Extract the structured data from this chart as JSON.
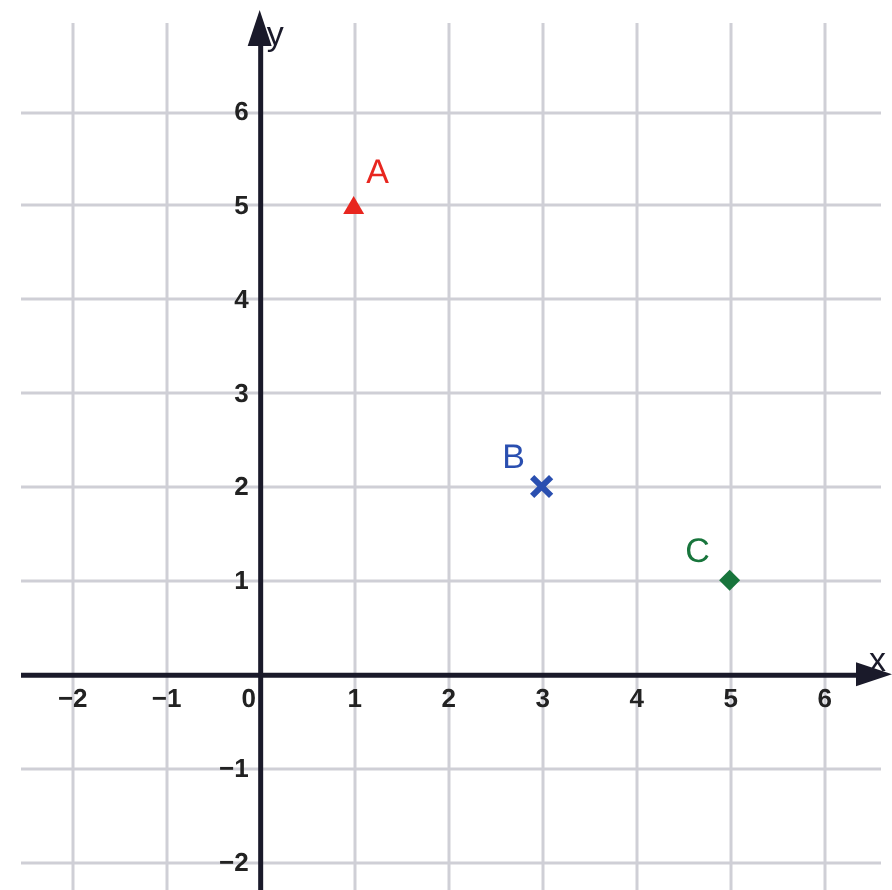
{
  "chart_data": {
    "type": "scatter",
    "xlabel": "x",
    "ylabel": "y",
    "xlim": [
      -2.55,
      6.6
    ],
    "ylim": [
      -2.3,
      6.95
    ],
    "xticks": [
      {
        "value": -2,
        "label": "−2"
      },
      {
        "value": -1,
        "label": "−1"
      },
      0,
      1,
      2,
      3,
      4,
      5,
      6
    ],
    "yticks": [
      {
        "value": -2,
        "label": "−2"
      },
      {
        "value": -1,
        "label": "−1"
      },
      1,
      2,
      3,
      4,
      5,
      6
    ],
    "grid": true,
    "series": [
      {
        "name": "A",
        "color": "#e8261f",
        "marker": "triangle",
        "x": [
          1
        ],
        "values": [
          5
        ]
      },
      {
        "name": "B",
        "color": "#2a4fb0",
        "marker": "cross",
        "x": [
          3
        ],
        "values": [
          2
        ]
      },
      {
        "name": "C",
        "color": "#18753c",
        "marker": "diamond",
        "x": [
          5
        ],
        "values": [
          1
        ]
      }
    ]
  }
}
